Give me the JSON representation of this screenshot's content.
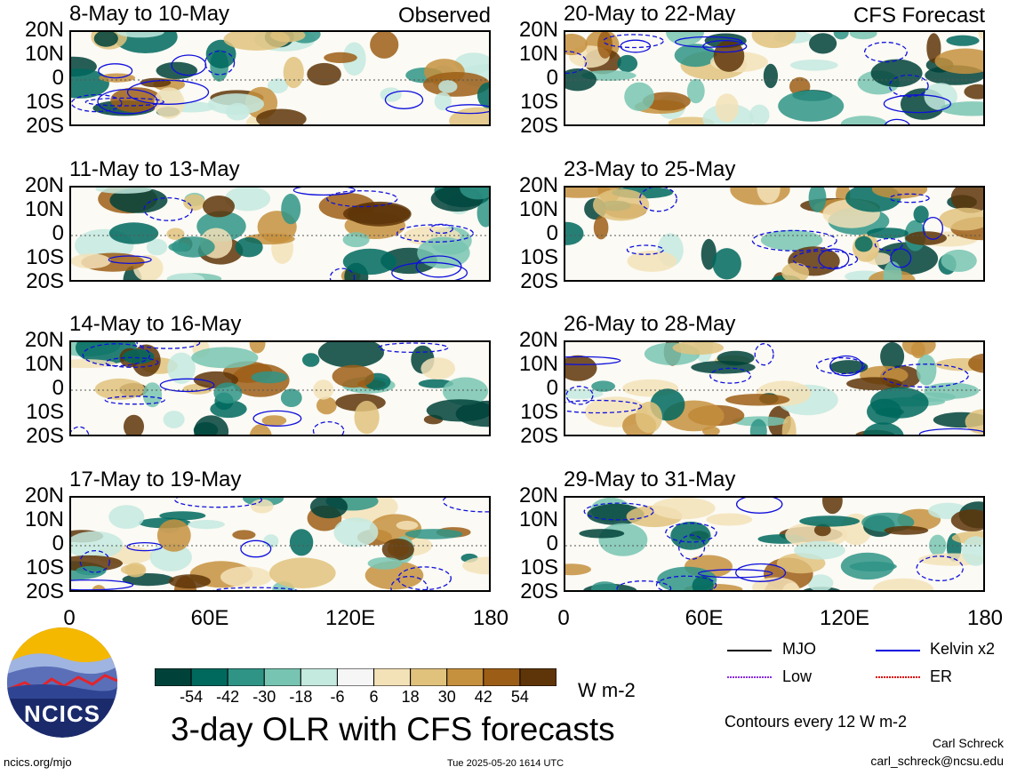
{
  "panels": [
    {
      "title": "8-May to 10-May",
      "tag": "Observed"
    },
    {
      "title": "20-May to 22-May",
      "tag": "CFS Forecast"
    },
    {
      "title": "11-May to 13-May",
      "tag": ""
    },
    {
      "title": "23-May to 25-May",
      "tag": ""
    },
    {
      "title": "14-May to 16-May",
      "tag": ""
    },
    {
      "title": "26-May to 28-May",
      "tag": ""
    },
    {
      "title": "17-May to 19-May",
      "tag": ""
    },
    {
      "title": "29-May to 31-May",
      "tag": ""
    }
  ],
  "lat_labels": [
    "20N",
    "10N",
    "0",
    "10S",
    "20S"
  ],
  "lon_labels": [
    "0",
    "60E",
    "120E",
    "180"
  ],
  "colorbar": {
    "ticks": [
      "-54",
      "-42",
      "-30",
      "-18",
      "-6",
      "6",
      "18",
      "30",
      "42",
      "54"
    ],
    "colors": [
      "#00423a",
      "#00695e",
      "#2f9486",
      "#78c4b2",
      "#c4e9df",
      "#f6f6f6",
      "#f3e2b8",
      "#e1c27d",
      "#c6913e",
      "#9c5e16",
      "#5e3508"
    ],
    "units": "W m-2"
  },
  "title": "3-day OLR with CFS forecasts",
  "legend": {
    "items": [
      {
        "label": "MJO",
        "color": "#000000"
      },
      {
        "label": "Kelvin x2",
        "color": "#0000dd"
      },
      {
        "label": "Low",
        "color": "#8a2be2"
      },
      {
        "label": "ER",
        "color": "#dd0000"
      }
    ],
    "contour_note": "Contours every 12 W m-2"
  },
  "footer": {
    "url": "ncics.org/mjo",
    "timestamp": "Tue 2025-05-20 1614 UTC",
    "author": "Carl Schreck",
    "email": "carl_schreck@ncsu.edu"
  },
  "logo": {
    "text": "NCICS"
  }
}
